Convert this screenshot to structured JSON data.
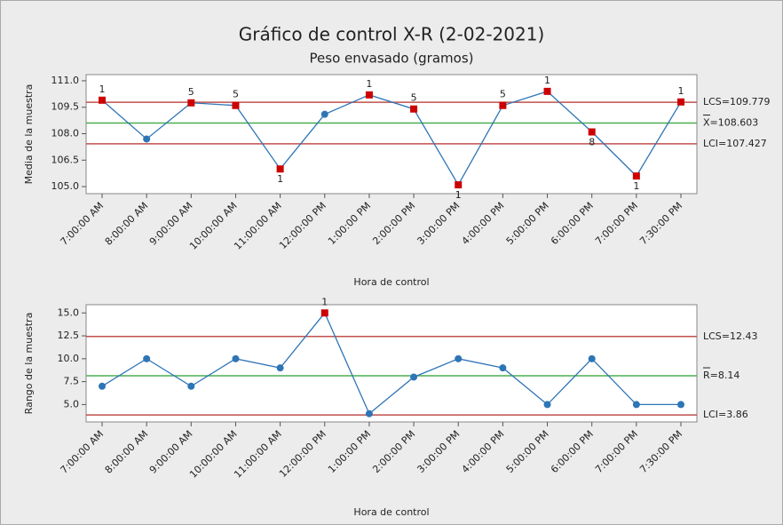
{
  "chart_data": [
    {
      "type": "line",
      "title": "Gráfico de control X-R (2-02-2021)",
      "subtitle": "Peso envasado (gramos)",
      "x_label": "Hora de control",
      "y_label": "Media de la muestra",
      "categories": [
        "7:00:00 AM",
        "8:00:00 AM",
        "9:00:00 AM",
        "10:00:00 AM",
        "11:00:00 AM",
        "12:00:00 PM",
        "1:00:00 PM",
        "2:00:00 PM",
        "3:00:00 PM",
        "4:00:00 PM",
        "5:00:00 PM",
        "6:00:00 PM",
        "7:00:00 PM",
        "7:30:00 PM"
      ],
      "values": [
        109.9,
        107.7,
        109.75,
        109.6,
        106.0,
        109.1,
        110.2,
        109.4,
        105.1,
        109.6,
        110.4,
        108.1,
        105.6,
        109.8
      ],
      "flags": [
        "1",
        null,
        "5",
        "5",
        "1",
        null,
        "1",
        "5",
        "1",
        "5",
        "1",
        "8",
        "1",
        "1"
      ],
      "color": "#2e75b6",
      "flag_color": "#cc0000",
      "ylim": [
        104.6,
        111.35
      ],
      "yticks": [
        {
          "value": 105,
          "label": "105.0"
        },
        {
          "value": 106.5,
          "label": "106.5"
        },
        {
          "value": 108,
          "label": "108.0"
        },
        {
          "value": 109.5,
          "label": "109.5"
        },
        {
          "value": 111,
          "label": "111.0"
        }
      ],
      "control_limits": {
        "values": [
          109.779,
          108.603,
          107.427
        ],
        "value_labels": [
          "LCS=109.779",
          "X=108.603",
          "LCI=107.427"
        ],
        "colors": [
          "#c0504d",
          "#4caf50",
          "#c0504d"
        ]
      }
    },
    {
      "type": "line",
      "x_label": "Hora de control",
      "y_label": "Rango de la muestra",
      "categories": [
        "7:00:00 AM",
        "8:00:00 AM",
        "9:00:00 AM",
        "10:00:00 AM",
        "11:00:00 AM",
        "12:00:00 PM",
        "1:00:00 PM",
        "2:00:00 PM",
        "3:00:00 PM",
        "4:00:00 PM",
        "5:00:00 PM",
        "6:00:00 PM",
        "7:00:00 PM",
        "7:30:00 PM"
      ],
      "values": [
        7,
        10,
        7,
        10,
        9,
        15,
        4,
        8,
        10,
        9,
        5,
        10,
        5,
        5
      ],
      "flags": [
        null,
        null,
        null,
        null,
        null,
        "1",
        null,
        null,
        null,
        null,
        null,
        null,
        null,
        null
      ],
      "color": "#2e75b6",
      "flag_color": "#cc0000",
      "ylim": [
        3.1,
        15.9
      ],
      "yticks": [
        {
          "value": 5,
          "label": "5.0"
        },
        {
          "value": 7.5,
          "label": "7.5"
        },
        {
          "value": 10,
          "label": "10.0"
        },
        {
          "value": 12.5,
          "label": "12.5"
        },
        {
          "value": 15,
          "label": "15.0"
        }
      ],
      "control_limits": {
        "values": [
          12.43,
          8.14,
          3.86
        ],
        "value_labels": [
          "LCS=12.43",
          "R=8.14",
          "LCI=3.86"
        ],
        "colors": [
          "#c0504d",
          "#4caf50",
          "#c0504d"
        ]
      }
    }
  ]
}
